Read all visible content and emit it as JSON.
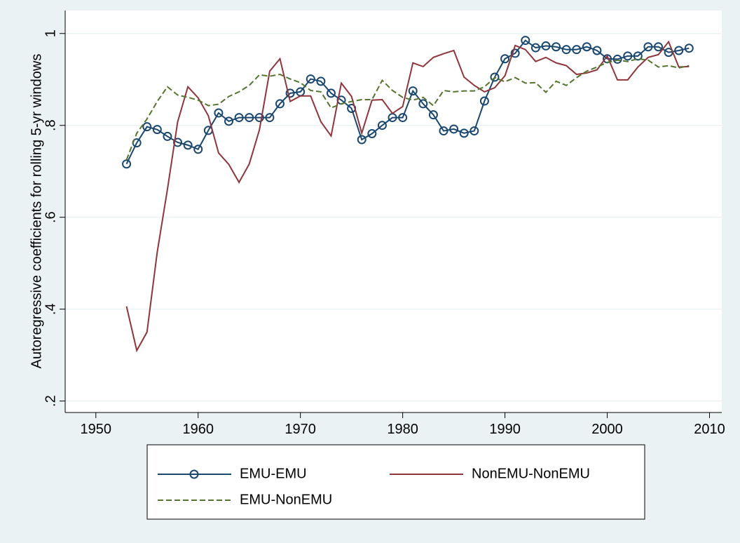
{
  "chart_data": {
    "type": "line",
    "y_label": "Autoregressive coefficients for rolling 5-yr windows",
    "x": [
      1953,
      1954,
      1955,
      1956,
      1957,
      1958,
      1959,
      1960,
      1961,
      1962,
      1963,
      1964,
      1965,
      1966,
      1967,
      1968,
      1969,
      1970,
      1971,
      1972,
      1973,
      1974,
      1975,
      1976,
      1977,
      1978,
      1979,
      1980,
      1981,
      1982,
      1983,
      1984,
      1985,
      1986,
      1987,
      1988,
      1989,
      1990,
      1991,
      1992,
      1993,
      1994,
      1995,
      1996,
      1997,
      1998,
      1999,
      2000,
      2001,
      2002,
      2003,
      2004,
      2005,
      2006,
      2007,
      2008
    ],
    "xlim": [
      1947,
      2011.2
    ],
    "xticks": [
      1950,
      1960,
      1970,
      1980,
      1990,
      2000,
      2010
    ],
    "ylim": [
      0.175,
      1.05
    ],
    "yticks": [
      {
        "value": 0.2,
        "label": ".2"
      },
      {
        "value": 0.4,
        "label": ".4"
      },
      {
        "value": 0.6,
        "label": ".6"
      },
      {
        "value": 0.8,
        "label": ".8"
      },
      1
    ],
    "grid": true,
    "series": [
      {
        "name": "EMU-EMU",
        "color": "#1a476f",
        "marker": "circle",
        "dash": false,
        "values": [
          0.716,
          0.762,
          0.797,
          0.791,
          0.776,
          0.763,
          0.757,
          0.748,
          0.789,
          0.827,
          0.809,
          0.817,
          0.817,
          0.817,
          0.817,
          0.847,
          0.87,
          0.873,
          0.901,
          0.896,
          0.87,
          0.855,
          0.837,
          0.769,
          0.782,
          0.8,
          0.817,
          0.817,
          0.875,
          0.847,
          0.823,
          0.788,
          0.792,
          0.783,
          0.788,
          0.853,
          0.905,
          0.945,
          0.957,
          0.985,
          0.969,
          0.973,
          0.971,
          0.965,
          0.965,
          0.971,
          0.963,
          0.945,
          0.944,
          0.951,
          0.951,
          0.971,
          0.971,
          0.959,
          0.963,
          0.968
        ]
      },
      {
        "name": "NonEMU-NonEMU",
        "color": "#90353b",
        "marker": "none",
        "dash": false,
        "values": [
          0.406,
          0.31,
          0.35,
          0.524,
          0.661,
          0.808,
          0.884,
          0.86,
          0.821,
          0.74,
          0.715,
          0.676,
          0.716,
          0.791,
          0.918,
          0.945,
          0.852,
          0.864,
          0.864,
          0.808,
          0.777,
          0.892,
          0.863,
          0.783,
          0.855,
          0.856,
          0.826,
          0.841,
          0.936,
          0.928,
          0.948,
          0.956,
          0.963,
          0.905,
          0.887,
          0.873,
          0.882,
          0.908,
          0.974,
          0.965,
          0.939,
          0.948,
          0.936,
          0.93,
          0.911,
          0.914,
          0.921,
          0.951,
          0.899,
          0.899,
          0.927,
          0.948,
          0.954,
          0.982,
          0.927,
          0.928
        ]
      },
      {
        "name": "EMU-NonEMU",
        "color": "#55752f",
        "marker": "none",
        "dash": true,
        "values": [
          0.725,
          0.783,
          0.814,
          0.852,
          0.884,
          0.866,
          0.861,
          0.855,
          0.843,
          0.846,
          0.863,
          0.873,
          0.887,
          0.91,
          0.907,
          0.911,
          0.901,
          0.893,
          0.876,
          0.873,
          0.838,
          0.847,
          0.852,
          0.856,
          0.856,
          0.898,
          0.876,
          0.861,
          0.855,
          0.861,
          0.843,
          0.876,
          0.873,
          0.875,
          0.875,
          0.884,
          0.904,
          0.895,
          0.904,
          0.892,
          0.893,
          0.872,
          0.896,
          0.887,
          0.904,
          0.918,
          0.927,
          0.937,
          0.942,
          0.939,
          0.945,
          0.942,
          0.927,
          0.93,
          0.925,
          0.93
        ]
      }
    ]
  }
}
